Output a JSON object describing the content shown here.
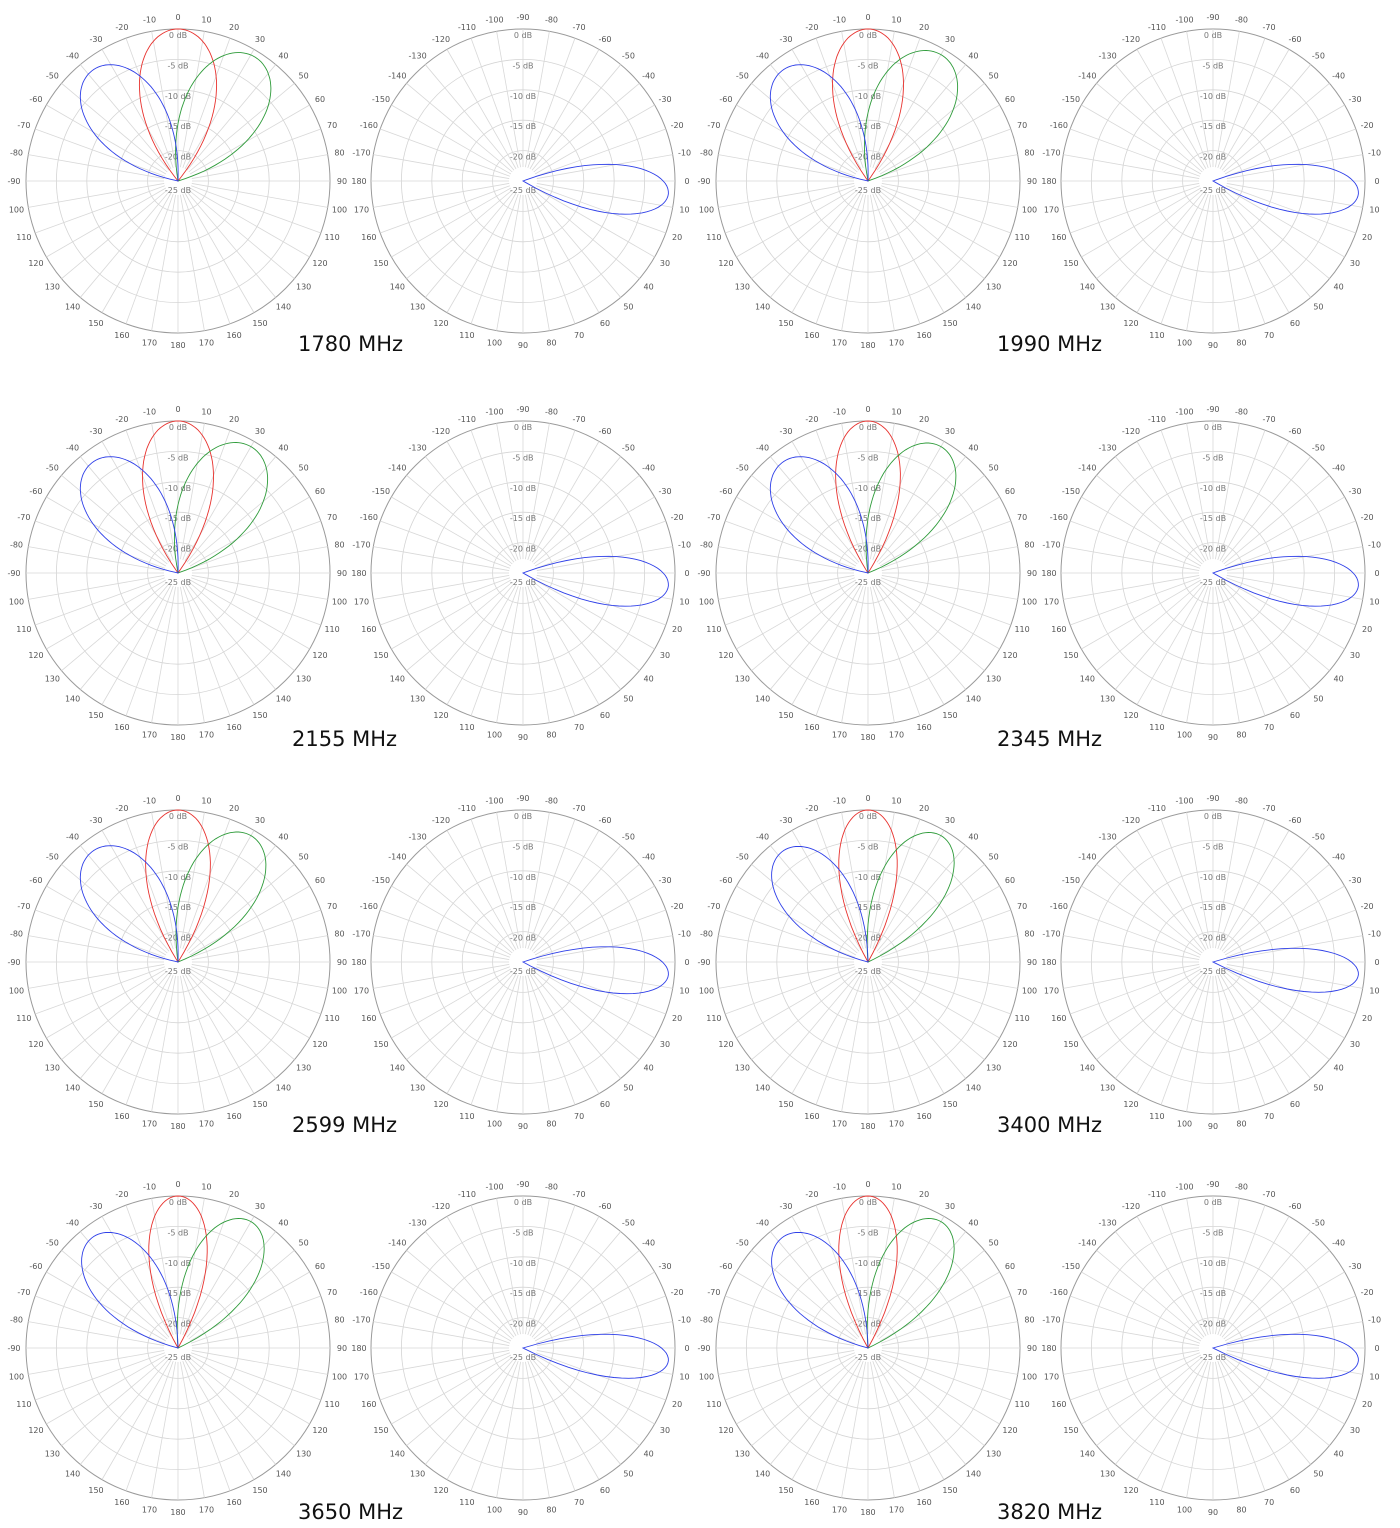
{
  "figure": {
    "rings_db": [
      "0 dB",
      "-5 dB",
      "-10 dB",
      "-15 dB",
      "-20 dB",
      "-25 dB"
    ],
    "colors": {
      "red": "#e8322e",
      "green": "#2e9b3a",
      "blue": "#2e3fe8"
    },
    "plane_a_angles": [
      "0",
      "10",
      "20",
      "30",
      "40",
      "50",
      "60",
      "70",
      "80",
      "90",
      "100",
      "110",
      "120",
      "130",
      "140",
      "150",
      "160",
      "170",
      "180",
      "170",
      "160",
      "150",
      "140",
      "130",
      "120",
      "110",
      "100",
      "-90",
      "-80",
      "-70",
      "-60",
      "-50",
      "-40",
      "-30",
      "-20",
      "-10"
    ],
    "plane_b_angles": [
      "0",
      "10",
      "20",
      "30",
      "40",
      "50",
      "60",
      "70",
      "80",
      "90",
      "100",
      "110",
      "120",
      "130",
      "140",
      "150",
      "160",
      "170",
      "180",
      "-170",
      "-160",
      "-150",
      "-140",
      "-130",
      "-120",
      "-110",
      "-100",
      "-90",
      "-80",
      "-70",
      "-60",
      "-50",
      "-40",
      "-30",
      "-20",
      "-10"
    ]
  },
  "chart_data": [
    {
      "type": "polar",
      "frequency": "1780 MHz",
      "r_range_db": [
        -25,
        0
      ],
      "series": [
        {
          "color": "red",
          "peak_angle_deg": 0,
          "peak_db": 0,
          "beamwidth_deg": 24
        },
        {
          "color": "green",
          "peak_angle_deg": 32,
          "peak_db": -1,
          "beamwidth_deg": 26
        },
        {
          "color": "blue",
          "peak_angle_deg": -38,
          "peak_db": -2,
          "beamwidth_deg": 26
        },
        {
          "color": "blue",
          "plane": "b",
          "peak_angle_deg": 5,
          "peak_db": -1,
          "beamwidth_deg": 16
        }
      ]
    },
    {
      "type": "polar",
      "frequency": "1990 MHz",
      "r_range_db": [
        -25,
        0
      ],
      "series": [
        {
          "color": "red",
          "peak_angle_deg": 0,
          "peak_db": 0,
          "beamwidth_deg": 22
        },
        {
          "color": "green",
          "peak_angle_deg": 30,
          "peak_db": -1,
          "beamwidth_deg": 26
        },
        {
          "color": "blue",
          "peak_angle_deg": -38,
          "peak_db": -2,
          "beamwidth_deg": 26
        },
        {
          "color": "blue",
          "plane": "b",
          "peak_angle_deg": 5,
          "peak_db": -1,
          "beamwidth_deg": 16
        }
      ]
    },
    {
      "type": "polar",
      "frequency": "2155 MHz",
      "r_range_db": [
        -25,
        0
      ],
      "series": [
        {
          "color": "red",
          "peak_angle_deg": 0,
          "peak_db": 0,
          "beamwidth_deg": 22
        },
        {
          "color": "green",
          "peak_angle_deg": 30,
          "peak_db": -1,
          "beamwidth_deg": 26
        },
        {
          "color": "blue",
          "peak_angle_deg": -38,
          "peak_db": -2,
          "beamwidth_deg": 26
        },
        {
          "color": "blue",
          "plane": "b",
          "peak_angle_deg": 5,
          "peak_db": -1,
          "beamwidth_deg": 16
        }
      ]
    },
    {
      "type": "polar",
      "frequency": "2345 MHz",
      "r_range_db": [
        -25,
        0
      ],
      "series": [
        {
          "color": "red",
          "peak_angle_deg": 0,
          "peak_db": 0,
          "beamwidth_deg": 20
        },
        {
          "color": "green",
          "peak_angle_deg": 30,
          "peak_db": -1,
          "beamwidth_deg": 24
        },
        {
          "color": "blue",
          "peak_angle_deg": -38,
          "peak_db": -2,
          "beamwidth_deg": 26
        },
        {
          "color": "blue",
          "plane": "b",
          "peak_angle_deg": 5,
          "peak_db": -1,
          "beamwidth_deg": 16
        }
      ]
    },
    {
      "type": "polar",
      "frequency": "2599 MHz",
      "r_range_db": [
        -25,
        0
      ],
      "series": [
        {
          "color": "red",
          "peak_angle_deg": 0,
          "peak_db": 0,
          "beamwidth_deg": 20
        },
        {
          "color": "green",
          "peak_angle_deg": 30,
          "peak_db": -1,
          "beamwidth_deg": 24
        },
        {
          "color": "blue",
          "peak_angle_deg": -38,
          "peak_db": -2,
          "beamwidth_deg": 26
        },
        {
          "color": "blue",
          "plane": "b",
          "peak_angle_deg": 5,
          "peak_db": -1,
          "beamwidth_deg": 15
        }
      ]
    },
    {
      "type": "polar",
      "frequency": "3400 MHz",
      "r_range_db": [
        -25,
        0
      ],
      "series": [
        {
          "color": "red",
          "peak_angle_deg": 0,
          "peak_db": 0,
          "beamwidth_deg": 18
        },
        {
          "color": "green",
          "peak_angle_deg": 30,
          "peak_db": -1,
          "beamwidth_deg": 22
        },
        {
          "color": "blue",
          "peak_angle_deg": -38,
          "peak_db": -2,
          "beamwidth_deg": 24
        },
        {
          "color": "blue",
          "plane": "b",
          "peak_angle_deg": 5,
          "peak_db": -1,
          "beamwidth_deg": 14
        }
      ]
    },
    {
      "type": "polar",
      "frequency": "3650 MHz",
      "r_range_db": [
        -25,
        0
      ],
      "series": [
        {
          "color": "red",
          "peak_angle_deg": 0,
          "peak_db": 0,
          "beamwidth_deg": 18
        },
        {
          "color": "green",
          "peak_angle_deg": 30,
          "peak_db": -1,
          "beamwidth_deg": 22
        },
        {
          "color": "blue",
          "peak_angle_deg": -38,
          "peak_db": -2,
          "beamwidth_deg": 24
        },
        {
          "color": "blue",
          "plane": "b",
          "peak_angle_deg": 5,
          "peak_db": -1,
          "beamwidth_deg": 14
        }
      ]
    },
    {
      "type": "polar",
      "frequency": "3820 MHz",
      "r_range_db": [
        -25,
        0
      ],
      "series": [
        {
          "color": "red",
          "peak_angle_deg": 0,
          "peak_db": 0,
          "beamwidth_deg": 18
        },
        {
          "color": "green",
          "peak_angle_deg": 30,
          "peak_db": -1,
          "beamwidth_deg": 22
        },
        {
          "color": "blue",
          "peak_angle_deg": -38,
          "peak_db": -2,
          "beamwidth_deg": 24
        },
        {
          "color": "blue",
          "plane": "b",
          "peak_angle_deg": 5,
          "peak_db": -1,
          "beamwidth_deg": 14
        }
      ]
    }
  ]
}
